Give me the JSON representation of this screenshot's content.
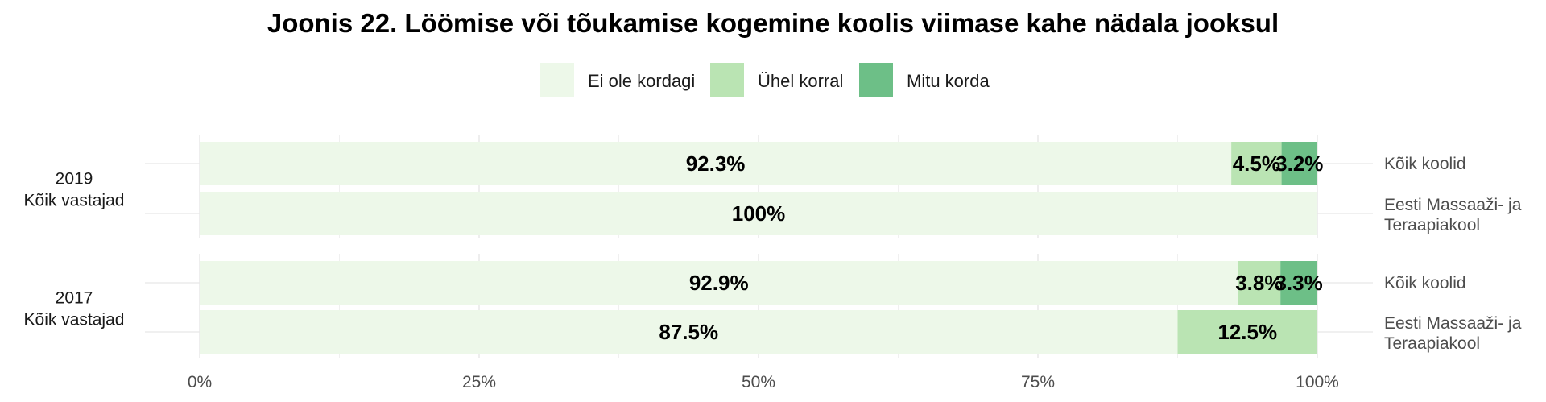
{
  "chart_data": {
    "type": "bar",
    "orientation": "horizontal",
    "stacked": true,
    "title": "Joonis 22. Löömise või tõukamise kogemine koolis viimase kahe nädala jooksul",
    "xlim": [
      0,
      100
    ],
    "x_ticks": [
      "0%",
      "25%",
      "50%",
      "75%",
      "100%"
    ],
    "x_tick_values": [
      0,
      25,
      50,
      75,
      100
    ],
    "grid": true,
    "legend_position": "top",
    "legend": [
      {
        "name": "Ei ole kordagi",
        "color": "#edf8e9"
      },
      {
        "name": "Ühel korral",
        "color": "#bae4b3"
      },
      {
        "name": "Mitu korda",
        "color": "#6dbf87"
      }
    ],
    "panels": [
      {
        "label_year": "2019",
        "label_group": "Kõik vastajad",
        "rows": [
          {
            "label": [
              "Kõik koolid"
            ],
            "values": [
              92.3,
              4.5,
              3.2
            ],
            "labels": [
              "92.3%",
              "4.5%",
              "3.2%"
            ]
          },
          {
            "label": [
              "Eesti Massaaži- ja",
              "Teraapiakool"
            ],
            "values": [
              100,
              0,
              0
            ],
            "labels": [
              "100%",
              "",
              ""
            ]
          }
        ]
      },
      {
        "label_year": "2017",
        "label_group": "Kõik vastajad",
        "rows": [
          {
            "label": [
              "Kõik koolid"
            ],
            "values": [
              92.9,
              3.8,
              3.3
            ],
            "labels": [
              "92.9%",
              "3.8%",
              "3.3%"
            ]
          },
          {
            "label": [
              "Eesti Massaaži- ja",
              "Teraapiakool"
            ],
            "values": [
              87.5,
              12.5,
              0
            ],
            "labels": [
              "87.5%",
              "12.5%",
              ""
            ]
          }
        ]
      }
    ]
  }
}
